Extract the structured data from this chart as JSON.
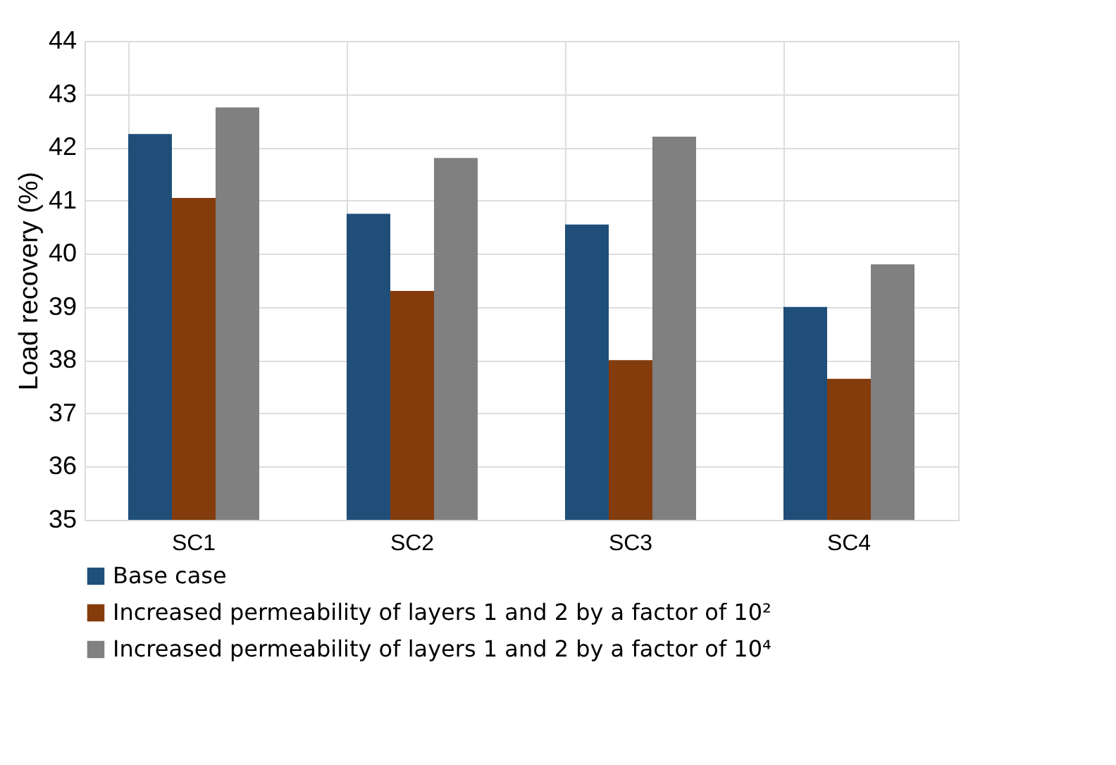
{
  "chart_data": {
    "type": "bar",
    "ylabel": "Load recovery (%)",
    "categories": [
      "SC1",
      "SC2",
      "SC3",
      "SC4"
    ],
    "series": [
      {
        "name": "Base case",
        "color": "#1f4e79",
        "values": [
          42.25,
          40.75,
          40.55,
          39.0
        ]
      },
      {
        "name": "Increased permeability of layers 1 and 2 by a factor of 10²",
        "color": "#843c0c",
        "values": [
          41.05,
          39.3,
          38.0,
          37.65
        ]
      },
      {
        "name": "Increased permeability of layers 1 and 2 by a factor of 10⁴",
        "color": "#808080",
        "values": [
          42.75,
          41.8,
          42.2,
          39.8
        ]
      }
    ],
    "ylim": [
      35,
      44
    ],
    "yticks": [
      35,
      36,
      37,
      38,
      39,
      40,
      41,
      42,
      43,
      44
    ],
    "grid": true,
    "legend": "bottom left"
  }
}
